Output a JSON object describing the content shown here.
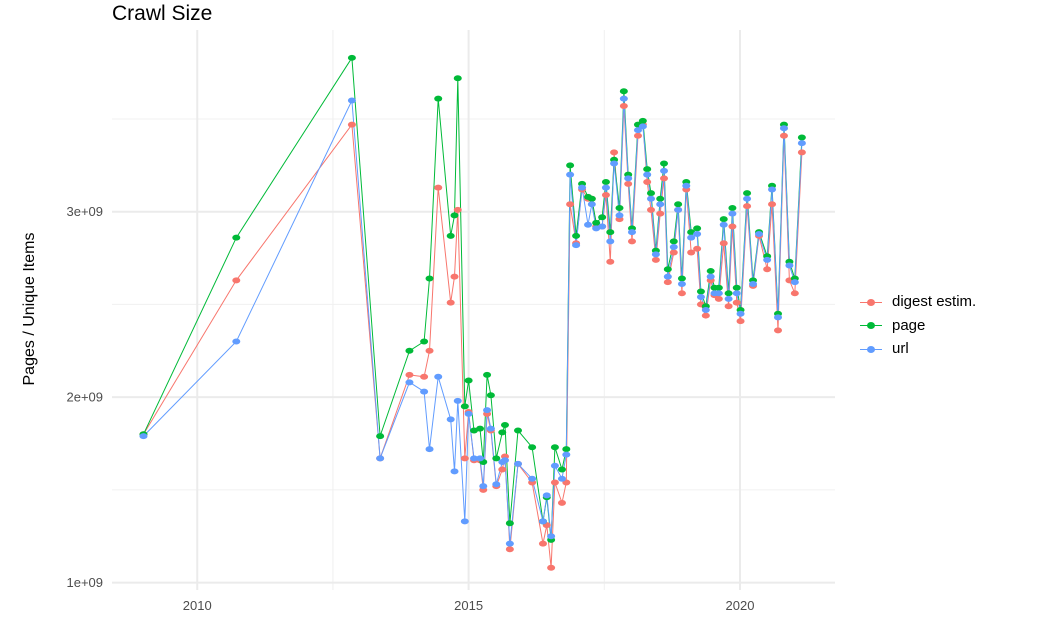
{
  "chart_data": {
    "type": "line",
    "title": "Crawl Size",
    "xlabel": "",
    "ylabel": "Pages / Unique Items",
    "xlim": [
      2008.43,
      2021.75
    ],
    "ylim": [
      960000000.0,
      3980000000.0
    ],
    "x_ticks": [
      2010,
      2015,
      2020
    ],
    "x_tick_labels": [
      "2010",
      "2015",
      "2020"
    ],
    "y_ticks": [
      1000000000.0,
      2000000000.0,
      3000000000.0
    ],
    "y_tick_labels": [
      "1e+09",
      "2e+09",
      "3e+09"
    ],
    "grid": true,
    "legend_position": "right",
    "x": [
      2009.01,
      2010.72,
      2012.85,
      2013.37,
      2013.91,
      2014.18,
      2014.28,
      2014.44,
      2014.67,
      2014.74,
      2014.8,
      2014.93,
      2015.0,
      2015.1,
      2015.21,
      2015.27,
      2015.34,
      2015.41,
      2015.51,
      2015.62,
      2015.67,
      2015.76,
      2015.91,
      2016.17,
      2016.37,
      2016.44,
      2016.52,
      2016.59,
      2016.72,
      2016.8,
      2016.87,
      2016.98,
      2017.09,
      2017.2,
      2017.27,
      2017.35,
      2017.46,
      2017.53,
      2017.61,
      2017.68,
      2017.78,
      2017.86,
      2017.94,
      2018.01,
      2018.12,
      2018.21,
      2018.29,
      2018.36,
      2018.45,
      2018.53,
      2018.6,
      2018.67,
      2018.78,
      2018.86,
      2018.93,
      2019.01,
      2019.1,
      2019.21,
      2019.28,
      2019.37,
      2019.46,
      2019.53,
      2019.61,
      2019.7,
      2019.79,
      2019.86,
      2019.94,
      2020.01,
      2020.13,
      2020.24,
      2020.35,
      2020.5,
      2020.59,
      2020.7,
      2020.81,
      2020.91,
      2021.01,
      2021.14
    ],
    "series": [
      {
        "name": "digest estim.",
        "color": "#F8766D",
        "values": [
          1800000000.0,
          2630000000.0,
          3470000000.0,
          1670000000.0,
          2120000000.0,
          2110000000.0,
          2250000000.0,
          3130000000.0,
          2510000000.0,
          2650000000.0,
          3010000000.0,
          1670000000.0,
          1920000000.0,
          1660000000.0,
          1660000000.0,
          1500000000.0,
          1910000000.0,
          1820000000.0,
          1520000000.0,
          1610000000.0,
          1680000000.0,
          1180000000.0,
          1640000000.0,
          1540000000.0,
          1210000000.0,
          1310000000.0,
          1080000000.0,
          1540000000.0,
          1430000000.0,
          1540000000.0,
          3040000000.0,
          2830000000.0,
          3120000000.0,
          3070000000.0,
          3070000000.0,
          2920000000.0,
          2920000000.0,
          3090000000.0,
          2730000000.0,
          3320000000.0,
          2960000000.0,
          3570000000.0,
          3150000000.0,
          2840000000.0,
          3410000000.0,
          3470000000.0,
          3160000000.0,
          3010000000.0,
          2740000000.0,
          2990000000.0,
          3180000000.0,
          2620000000.0,
          2780000000.0,
          3010000000.0,
          2560000000.0,
          3120000000.0,
          2780000000.0,
          2800000000.0,
          2500000000.0,
          2440000000.0,
          2630000000.0,
          2550000000.0,
          2530000000.0,
          2830000000.0,
          2490000000.0,
          2920000000.0,
          2510000000.0,
          2410000000.0,
          3030000000.0,
          2600000000.0,
          2870000000.0,
          2690000000.0,
          3040000000.0,
          2360000000.0,
          3410000000.0,
          2630000000.0,
          2560000000.0,
          3320000000.0
        ]
      },
      {
        "name": "page",
        "color": "#00BA38",
        "values": [
          1800000000.0,
          2860000000.0,
          3830000000.0,
          1790000000.0,
          2250000000.0,
          2300000000.0,
          2640000000.0,
          3610000000.0,
          2870000000.0,
          2980000000.0,
          3720000000.0,
          1950000000.0,
          2090000000.0,
          1820000000.0,
          1830000000.0,
          1650000000.0,
          2120000000.0,
          2010000000.0,
          1670000000.0,
          1810000000.0,
          1850000000.0,
          1320000000.0,
          1820000000.0,
          1730000000.0,
          1330000000.0,
          1460000000.0,
          1230000000.0,
          1730000000.0,
          1610000000.0,
          1720000000.0,
          3250000000.0,
          2870000000.0,
          3150000000.0,
          3080000000.0,
          3070000000.0,
          2940000000.0,
          2970000000.0,
          3160000000.0,
          2890000000.0,
          3280000000.0,
          3020000000.0,
          3650000000.0,
          3200000000.0,
          2910000000.0,
          3470000000.0,
          3490000000.0,
          3230000000.0,
          3100000000.0,
          2790000000.0,
          3070000000.0,
          3260000000.0,
          2690000000.0,
          2840000000.0,
          3040000000.0,
          2640000000.0,
          3160000000.0,
          2890000000.0,
          2910000000.0,
          2570000000.0,
          2490000000.0,
          2680000000.0,
          2590000000.0,
          2590000000.0,
          2960000000.0,
          2560000000.0,
          3020000000.0,
          2590000000.0,
          2470000000.0,
          3100000000.0,
          2630000000.0,
          2890000000.0,
          2760000000.0,
          3140000000.0,
          2450000000.0,
          3470000000.0,
          2730000000.0,
          2640000000.0,
          3400000000.0
        ]
      },
      {
        "name": "url",
        "color": "#619CFF",
        "values": [
          1790000000.0,
          2300000000.0,
          3600000000.0,
          1670000000.0,
          2080000000.0,
          2030000000.0,
          1720000000.0,
          2110000000.0,
          1880000000.0,
          1600000000.0,
          1980000000.0,
          1330000000.0,
          1910000000.0,
          1670000000.0,
          1670000000.0,
          1520000000.0,
          1930000000.0,
          1830000000.0,
          1530000000.0,
          1650000000.0,
          1660000000.0,
          1210000000.0,
          1640000000.0,
          1560000000.0,
          1330000000.0,
          1470000000.0,
          1250000000.0,
          1630000000.0,
          1560000000.0,
          1690000000.0,
          3200000000.0,
          2820000000.0,
          3130000000.0,
          2930000000.0,
          3040000000.0,
          2910000000.0,
          2920000000.0,
          3130000000.0,
          2840000000.0,
          3260000000.0,
          2980000000.0,
          3610000000.0,
          3180000000.0,
          2890000000.0,
          3440000000.0,
          3460000000.0,
          3200000000.0,
          3070000000.0,
          2770000000.0,
          3040000000.0,
          3220000000.0,
          2650000000.0,
          2810000000.0,
          3010000000.0,
          2610000000.0,
          3140000000.0,
          2860000000.0,
          2880000000.0,
          2540000000.0,
          2470000000.0,
          2650000000.0,
          2560000000.0,
          2560000000.0,
          2930000000.0,
          2530000000.0,
          2990000000.0,
          2560000000.0,
          2450000000.0,
          3070000000.0,
          2610000000.0,
          2880000000.0,
          2740000000.0,
          3120000000.0,
          2430000000.0,
          3450000000.0,
          2710000000.0,
          2620000000.0,
          3370000000.0
        ]
      }
    ]
  }
}
